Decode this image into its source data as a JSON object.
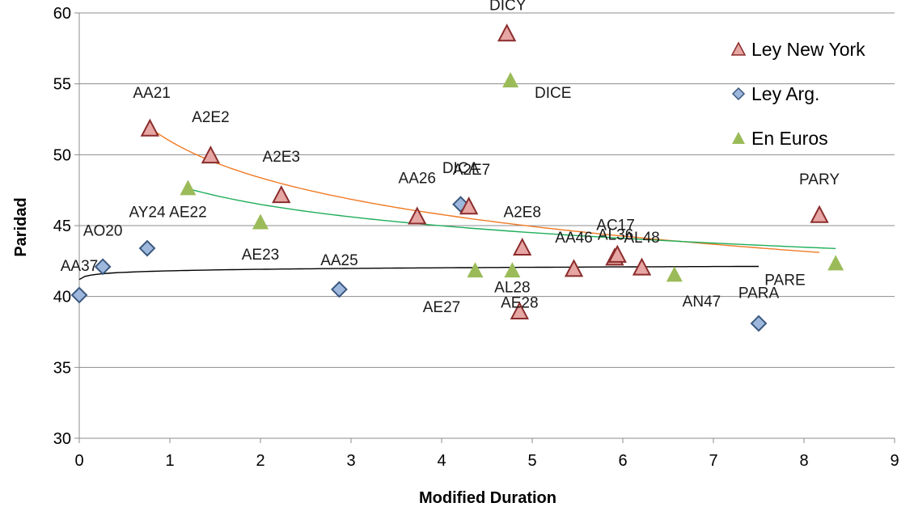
{
  "chart_data": {
    "type": "scatter",
    "xlabel": "Modified Duration",
    "ylabel": "Paridad",
    "xlim": [
      0,
      9
    ],
    "ylim": [
      30,
      60
    ],
    "xticks": [
      0,
      1,
      2,
      3,
      4,
      5,
      6,
      7,
      8,
      9
    ],
    "yticks": [
      30,
      35,
      40,
      45,
      50,
      55,
      60
    ],
    "grid": "horizontal",
    "legend_position": "top-right",
    "colors": {
      "ny_fill": "#e6a6a3",
      "ny_stroke": "#8b2c2c",
      "arg_fill": "#9db8dc",
      "arg_stroke": "#3b587f",
      "eur_fill": "#9bbb59",
      "trend_ny": "#f07b26",
      "trend_eur": "#1fae5a",
      "trend_arg": "#000000"
    },
    "series": [
      {
        "name": "Ley New York",
        "marker": "triangle",
        "points": [
          {
            "x": 0.78,
            "y": 51.8
          },
          {
            "x": 1.45,
            "y": 49.9
          },
          {
            "x": 2.23,
            "y": 47.1
          },
          {
            "x": 3.73,
            "y": 45.6
          },
          {
            "x": 4.3,
            "y": 46.3
          },
          {
            "x": 4.72,
            "y": 58.5
          },
          {
            "x": 4.86,
            "y": 38.9
          },
          {
            "x": 4.89,
            "y": 43.4
          },
          {
            "x": 5.46,
            "y": 41.9
          },
          {
            "x": 5.91,
            "y": 42.7
          },
          {
            "x": 5.94,
            "y": 42.9
          },
          {
            "x": 6.21,
            "y": 42.0
          },
          {
            "x": 8.17,
            "y": 45.7
          }
        ]
      },
      {
        "name": "Ley Arg.",
        "marker": "diamond",
        "points": [
          {
            "x": 0.0,
            "y": 40.1
          },
          {
            "x": 0.26,
            "y": 42.1
          },
          {
            "x": 0.75,
            "y": 43.4
          },
          {
            "x": 2.87,
            "y": 40.5
          },
          {
            "x": 4.21,
            "y": 46.5
          },
          {
            "x": 7.5,
            "y": 38.1
          }
        ]
      },
      {
        "name": "En Euros",
        "marker": "triangle",
        "points": [
          {
            "x": 1.2,
            "y": 47.6
          },
          {
            "x": 2.0,
            "y": 45.2
          },
          {
            "x": 4.37,
            "y": 41.8
          },
          {
            "x": 4.76,
            "y": 55.2
          },
          {
            "x": 4.78,
            "y": 41.8
          },
          {
            "x": 6.57,
            "y": 41.5
          },
          {
            "x": 8.35,
            "y": 42.3
          }
        ]
      }
    ],
    "trendlines": [
      {
        "series": "Ley New York",
        "type": "log",
        "x_range": [
          0.78,
          8.17
        ]
      },
      {
        "series": "En Euros",
        "type": "log",
        "x_range": [
          1.2,
          8.35
        ]
      },
      {
        "series": "Ley Arg.",
        "type": "log",
        "x_range": [
          0.0,
          7.5
        ]
      }
    ],
    "annotations": [
      {
        "text": "DICY",
        "x": 4.73,
        "y": 60.2
      },
      {
        "text": "DICE",
        "x": 5.23,
        "y": 54.0
      },
      {
        "text": "AA21",
        "x": 0.8,
        "y": 54.0
      },
      {
        "text": "A2E2",
        "x": 1.45,
        "y": 52.3
      },
      {
        "text": "A2E3",
        "x": 2.23,
        "y": 49.5
      },
      {
        "text": "AA26",
        "x": 3.73,
        "y": 48.0
      },
      {
        "text": "DICA",
        "x": 4.21,
        "y": 48.7
      },
      {
        "text": "A2E7",
        "x": 4.33,
        "y": 48.6
      },
      {
        "text": "AY24",
        "x": 0.75,
        "y": 45.6
      },
      {
        "text": "AE22",
        "x": 1.2,
        "y": 45.6
      },
      {
        "text": "AO20",
        "x": 0.26,
        "y": 44.3
      },
      {
        "text": "AA37",
        "x": 0.0,
        "y": 41.8
      },
      {
        "text": "AE23",
        "x": 2.0,
        "y": 42.6
      },
      {
        "text": "AA25",
        "x": 2.87,
        "y": 42.2
      },
      {
        "text": "A2E8",
        "x": 4.89,
        "y": 45.6
      },
      {
        "text": "AC17",
        "x": 5.92,
        "y": 44.7
      },
      {
        "text": "AA46",
        "x": 5.46,
        "y": 43.8
      },
      {
        "text": "AL36",
        "x": 5.92,
        "y": 44.0
      },
      {
        "text": "AL48",
        "x": 6.21,
        "y": 43.8
      },
      {
        "text": "AL28",
        "x": 4.78,
        "y": 40.3
      },
      {
        "text": "AE27",
        "x": 4.0,
        "y": 38.9
      },
      {
        "text": "AE28",
        "x": 4.86,
        "y": 39.2
      },
      {
        "text": "PARY",
        "x": 8.17,
        "y": 47.9
      },
      {
        "text": "PARE",
        "x": 7.79,
        "y": 40.8
      },
      {
        "text": "PARA",
        "x": 7.5,
        "y": 39.9
      },
      {
        "text": "AN47",
        "x": 6.87,
        "y": 39.3
      }
    ]
  }
}
